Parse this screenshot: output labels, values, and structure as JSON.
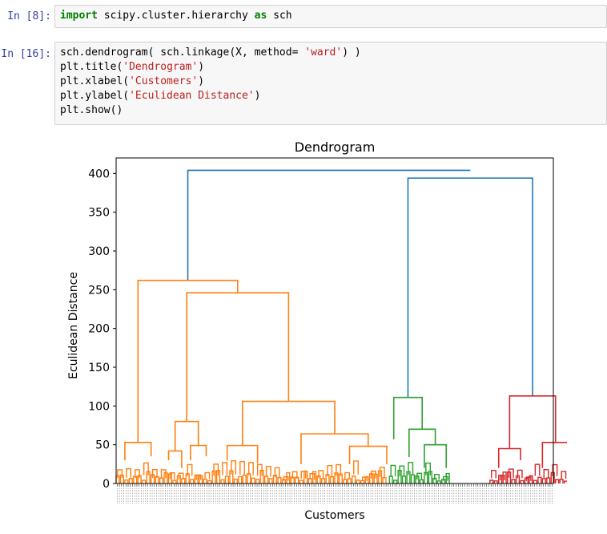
{
  "cells": [
    {
      "prompt": "In [8]:",
      "lines": [
        [
          {
            "t": "import",
            "c": "kw"
          },
          {
            "t": " scipy.cluster.hierarchy ",
            "c": ""
          },
          {
            "t": "as",
            "c": "kw"
          },
          {
            "t": " sch",
            "c": ""
          }
        ]
      ]
    },
    {
      "prompt": "In [16]:",
      "lines": [
        [
          {
            "t": "sch.dendrogram( sch.linkage(X, method= ",
            "c": ""
          },
          {
            "t": "'ward'",
            "c": "str"
          },
          {
            "t": ") )",
            "c": ""
          }
        ],
        [
          {
            "t": "plt.title(",
            "c": ""
          },
          {
            "t": "'Dendrogram'",
            "c": "str"
          },
          {
            "t": ")",
            "c": ""
          }
        ],
        [
          {
            "t": "plt.xlabel(",
            "c": ""
          },
          {
            "t": "'Customers'",
            "c": "str"
          },
          {
            "t": ")",
            "c": ""
          }
        ],
        [
          {
            "t": "plt.ylabel(",
            "c": ""
          },
          {
            "t": "'Eculidean Distance'",
            "c": "str"
          },
          {
            "t": ")",
            "c": ""
          }
        ],
        [
          {
            "t": "plt.show()",
            "c": ""
          }
        ]
      ]
    }
  ],
  "colors": {
    "root": "#1f77b4",
    "cluster_orange": "#ff7f0e",
    "cluster_green": "#2ca02c",
    "cluster_red": "#d62728"
  },
  "chart_data": {
    "type": "dendrogram",
    "title": "Dendrogram",
    "xlabel": "Customers",
    "ylabel": "Eculidean Distance",
    "ylim": [
      0,
      420
    ],
    "yticks": [
      0,
      50,
      100,
      150,
      200,
      250,
      300,
      350,
      400
    ],
    "leaf_count": 200,
    "x_extent": [
      0,
      200
    ],
    "merges": [
      {
        "color": "root",
        "x1": 32.8,
        "y1": 262,
        "x2": 162,
        "y2": 404,
        "h": 404
      },
      {
        "color": "root",
        "x1": 133.5,
        "y1": 111,
        "x2": 190.5,
        "y2": 113,
        "h": 394
      },
      {
        "color": "cluster_orange",
        "x1": 10,
        "y1": 53,
        "x2": 55.6,
        "y2": 246,
        "h": 262
      },
      {
        "color": "cluster_orange",
        "x1": 32.3,
        "y1": 80,
        "x2": 78.9,
        "y2": 106,
        "h": 246
      },
      {
        "color": "cluster_orange",
        "x1": 57.8,
        "y1": 49,
        "x2": 100,
        "y2": 64,
        "h": 106
      },
      {
        "color": "cluster_orange",
        "x1": 4,
        "y1": 30,
        "x2": 16,
        "y2": 35,
        "h": 53
      },
      {
        "color": "cluster_orange",
        "x1": 27,
        "y1": 42,
        "x2": 37.6,
        "y2": 49,
        "h": 80
      },
      {
        "color": "cluster_orange",
        "x1": 24,
        "y1": 30,
        "x2": 30,
        "y2": 20,
        "h": 42
      },
      {
        "color": "cluster_orange",
        "x1": 34,
        "y1": 30,
        "x2": 41.2,
        "y2": 35,
        "h": 49
      },
      {
        "color": "cluster_orange",
        "x1": 50.8,
        "y1": 30,
        "x2": 64.7,
        "y2": 26,
        "h": 49
      },
      {
        "color": "cluster_orange",
        "x1": 84.6,
        "y1": 25,
        "x2": 115.3,
        "y2": 48,
        "h": 64
      },
      {
        "color": "cluster_orange",
        "x1": 106.8,
        "y1": 25,
        "x2": 123.8,
        "y2": 25,
        "h": 48
      },
      {
        "color": "cluster_green",
        "x1": 127,
        "y1": 57,
        "x2": 140,
        "y2": 70,
        "h": 111
      },
      {
        "color": "cluster_green",
        "x1": 134,
        "y1": 34,
        "x2": 146,
        "y2": 50,
        "h": 70
      },
      {
        "color": "cluster_green",
        "x1": 141,
        "y1": 20,
        "x2": 151,
        "y2": 20,
        "h": 50
      },
      {
        "color": "cluster_red",
        "x1": 180,
        "y1": 45,
        "x2": 201,
        "y2": 53,
        "h": 113
      },
      {
        "color": "cluster_red",
        "x1": 175,
        "y1": 20,
        "x2": 185,
        "y2": 30,
        "h": 45
      },
      {
        "color": "cluster_red",
        "x1": 195,
        "y1": 20,
        "x2": 207,
        "y2": 20,
        "h": 53
      }
    ]
  }
}
